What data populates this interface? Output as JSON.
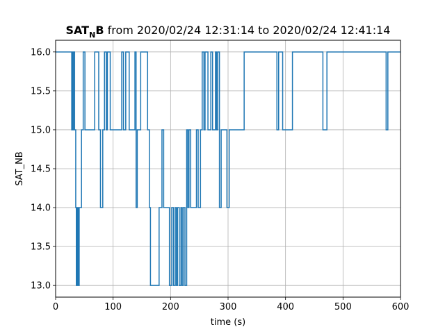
{
  "chart_data": {
    "type": "line",
    "title": {
      "sat": "SAT",
      "sub": "N",
      "b": "B",
      "rest": " from 2020/02/24 12:31:14 to 2020/02/24 12:41:14"
    },
    "xlabel": "time (s)",
    "ylabel": "SAT_NB",
    "xlim": [
      0,
      600
    ],
    "ylim": [
      12.85,
      16.15
    ],
    "xticks": [
      0,
      100,
      200,
      300,
      400,
      500,
      600
    ],
    "xtick_labels": [
      "0",
      "100",
      "200",
      "300",
      "400",
      "500",
      "600"
    ],
    "yticks": [
      13.0,
      13.5,
      14.0,
      14.5,
      15.0,
      15.5,
      16.0
    ],
    "ytick_labels": [
      "13.0",
      "13.5",
      "14.0",
      "14.5",
      "15.0",
      "15.5",
      "16.0"
    ],
    "grid": true,
    "line_style": "steps-post",
    "series": [
      {
        "color": "#1f77b4",
        "x": [
          0,
          28,
          29,
          30,
          31,
          33,
          35,
          36,
          37,
          38,
          39,
          40,
          41,
          42,
          45,
          48,
          51,
          54,
          68,
          75,
          78,
          82,
          85,
          88,
          90,
          92,
          95,
          108,
          115,
          118,
          122,
          128,
          135,
          138,
          140,
          142,
          148,
          160,
          163,
          165,
          167,
          180,
          185,
          188,
          190,
          192,
          198,
          202,
          205,
          208,
          210,
          212,
          215,
          218,
          220,
          222,
          225,
          228,
          230,
          232,
          235,
          240,
          245,
          248,
          250,
          252,
          255,
          258,
          260,
          262,
          265,
          270,
          273,
          275,
          278,
          280,
          282,
          285,
          288,
          292,
          298,
          302,
          305,
          310,
          320,
          328,
          380,
          385,
          388,
          395,
          408,
          412,
          420,
          465,
          472,
          480,
          575,
          578,
          580,
          600
        ],
        "y": [
          16,
          15,
          16,
          15,
          16,
          15,
          14,
          13,
          14,
          13,
          14,
          13,
          14,
          14,
          15,
          16,
          15,
          15,
          16,
          15,
          14,
          15,
          16,
          15,
          16,
          16,
          15,
          15,
          16,
          15,
          16,
          15,
          15,
          16,
          14,
          15,
          16,
          15,
          14,
          13,
          13,
          14,
          15,
          14,
          14,
          14,
          13,
          14,
          13,
          14,
          13,
          14,
          13,
          14,
          13,
          14,
          13,
          15,
          14,
          15,
          14,
          14,
          15,
          14,
          14,
          15,
          16,
          15,
          16,
          16,
          15,
          16,
          15,
          15,
          16,
          15,
          16,
          14,
          15,
          15,
          14,
          15,
          15,
          15,
          15,
          16,
          16,
          15,
          16,
          15,
          15,
          16,
          16,
          15,
          16,
          16,
          15,
          16,
          16,
          16
        ]
      }
    ]
  }
}
